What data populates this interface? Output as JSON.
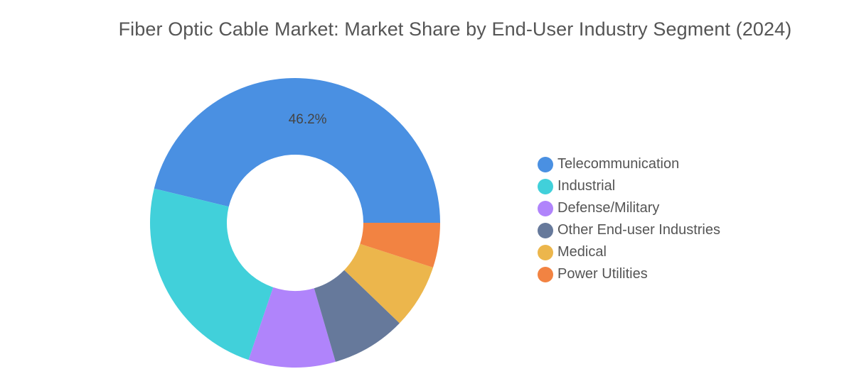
{
  "chart_data": {
    "type": "pie",
    "variant": "donut",
    "title": "Fiber Optic Cable Market: Market Share by End-User Industry Segment (2024)",
    "legend_position": "right",
    "categories": [
      "Telecommunication",
      "Industrial",
      "Defense/Military",
      "Other End-user Industries",
      "Medical",
      "Power Utilities"
    ],
    "values": [
      46.2,
      23.6,
      9.7,
      8.3,
      7.2,
      5.0
    ],
    "value_unit": "%",
    "data_labels": [
      "46.2%",
      "",
      "",
      "",
      "",
      ""
    ],
    "colors": [
      "#4a90e2",
      "#41d0da",
      "#b084fb",
      "#66799b",
      "#ecb64c",
      "#f28342"
    ]
  }
}
